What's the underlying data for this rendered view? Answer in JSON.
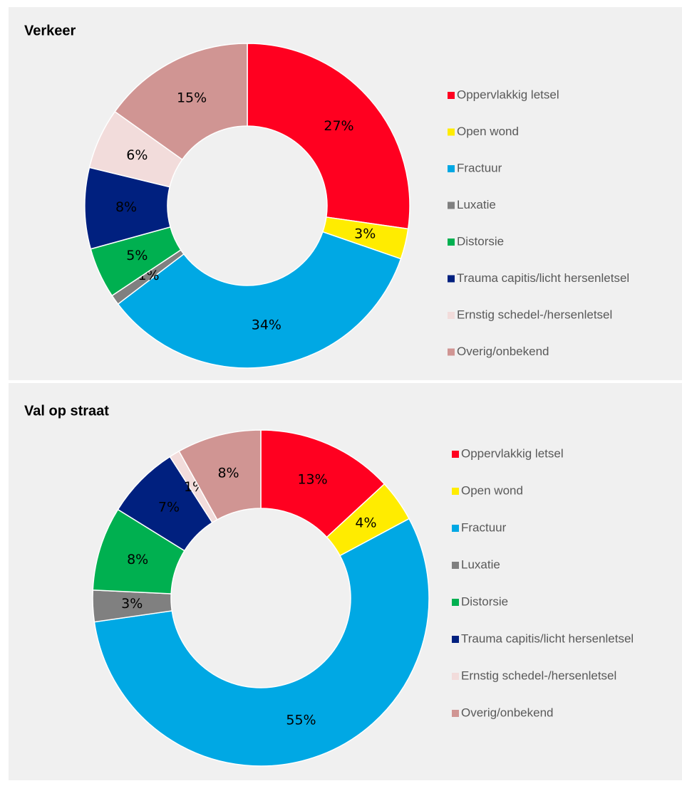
{
  "chart_data": [
    {
      "type": "pie",
      "title": "Verkeer",
      "categories": [
        "Oppervlakkig letsel",
        "Open wond",
        "Fractuur",
        "Luxatie",
        "Distorsie",
        "Trauma capitis/licht hersenletsel",
        "Ernstig schedel-/hersenletsel",
        "Overig/onbekend"
      ],
      "values": [
        27,
        3,
        34,
        1,
        5,
        8,
        6,
        15
      ],
      "value_labels": [
        "27%",
        "3%",
        "34%",
        "1%",
        "5%",
        "8%",
        "6%",
        "15%"
      ],
      "colors": [
        "#ff0020",
        "#ffec00",
        "#00a8e4",
        "#808080",
        "#00b050",
        "#00207f",
        "#f2dcdb",
        "#d09593"
      ],
      "legend": "right"
    },
    {
      "type": "pie",
      "title": "Val op straat",
      "categories": [
        "Oppervlakkig letsel",
        "Open wond",
        "Fractuur",
        "Luxatie",
        "Distorsie",
        "Trauma capitis/licht hersenletsel",
        "Ernstig schedel-/hersenletsel",
        "Overig/onbekend"
      ],
      "values": [
        13,
        4,
        55,
        3,
        8,
        7,
        1,
        8
      ],
      "value_labels": [
        "13%",
        "4%",
        "55%",
        "3%",
        "8%",
        "7%",
        "1%",
        "8%"
      ],
      "colors": [
        "#ff0020",
        "#ffec00",
        "#00a8e4",
        "#808080",
        "#00b050",
        "#00207f",
        "#f2dcdb",
        "#d09593"
      ],
      "legend": "right"
    }
  ]
}
